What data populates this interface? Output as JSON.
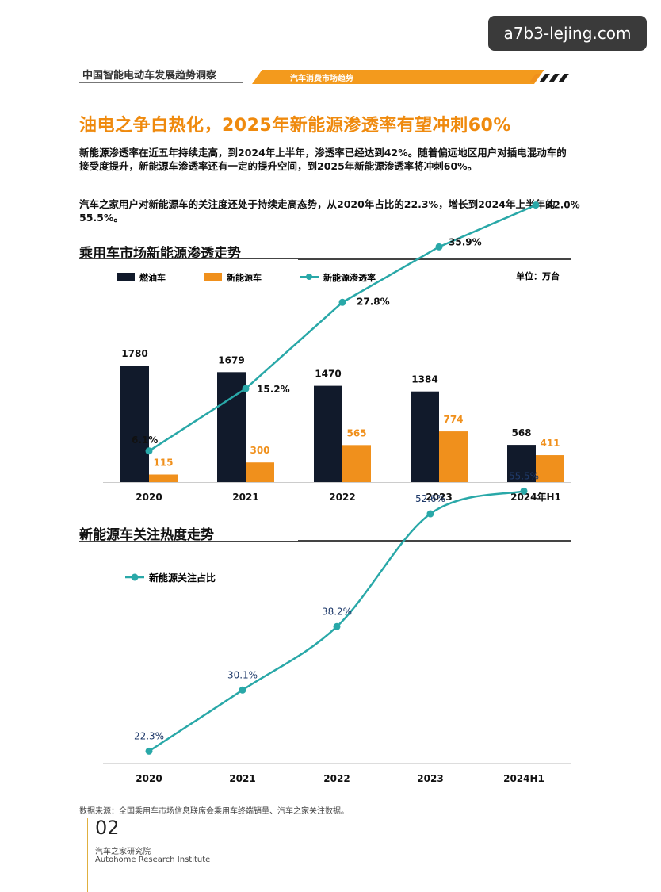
{
  "watermark": "a7b3-lejing.com",
  "header": {
    "left": "中国智能电动车发展趋势洞察",
    "section": "汽车消费市场趋势"
  },
  "title": "油电之争白热化，2025年新能源渗透率有望冲刺60%",
  "paragraph1": "新能源渗透率在近五年持续走高，到2024年上半年，渗透率已经达到42%。随着偏远地区用户对插电混动车的接受度提升，新能源车渗透率还有一定的提升空间，到2025年新能源渗透率将冲刺60%。",
  "paragraph2": "汽车之家用户对新能源车的关注度还处于持续走高态势，从2020年占比的22.3%，增长到2024年上半年的55.5%。",
  "colors": {
    "fuel": "#111a2b",
    "nev": "#f0901c",
    "line": "#29a8a8",
    "accent": "#ef8a0e"
  },
  "chart_data": [
    {
      "type": "bar",
      "title": "乘用车市场新能源渗透走势",
      "unit": "单位：万台",
      "categories": [
        "2020",
        "2021",
        "2022",
        "2023",
        "2024年H1"
      ],
      "series": [
        {
          "name": "燃油车",
          "values": [
            1780,
            1679,
            1470,
            1384,
            568
          ],
          "labels": [
            "1780",
            "1679",
            "1470",
            "1384",
            "568"
          ]
        },
        {
          "name": "新能源车",
          "values": [
            115,
            300,
            565,
            774,
            411
          ],
          "labels": [
            "115",
            "300",
            "565",
            "774",
            "411"
          ]
        },
        {
          "name": "新能源渗透率",
          "type": "line",
          "values": [
            6.1,
            15.2,
            27.8,
            35.9,
            42.0
          ],
          "labels": [
            "6.1%",
            "15.2%",
            "27.8%",
            "35.9%",
            "42.0%"
          ]
        }
      ],
      "legend": "top-left",
      "grid": false
    },
    {
      "type": "line",
      "title": "新能源车关注热度走势",
      "categories": [
        "2020",
        "2021",
        "2022",
        "2023",
        "2024H1"
      ],
      "series": [
        {
          "name": "新能源关注占比",
          "values": [
            22.3,
            30.1,
            38.2,
            52.6,
            55.5
          ],
          "labels": [
            "22.3%",
            "30.1%",
            "38.2%",
            "52.6%",
            "55.5%"
          ]
        }
      ],
      "legend": "top-left",
      "grid": false
    }
  ],
  "footer": {
    "source": "数据来源：全国乘用车市场信息联席会乘用车终端销量、汽车之家关注数据。",
    "page": "02",
    "institute_cn": "汽车之家研究院",
    "institute_en": "Autohome Research Institute"
  }
}
